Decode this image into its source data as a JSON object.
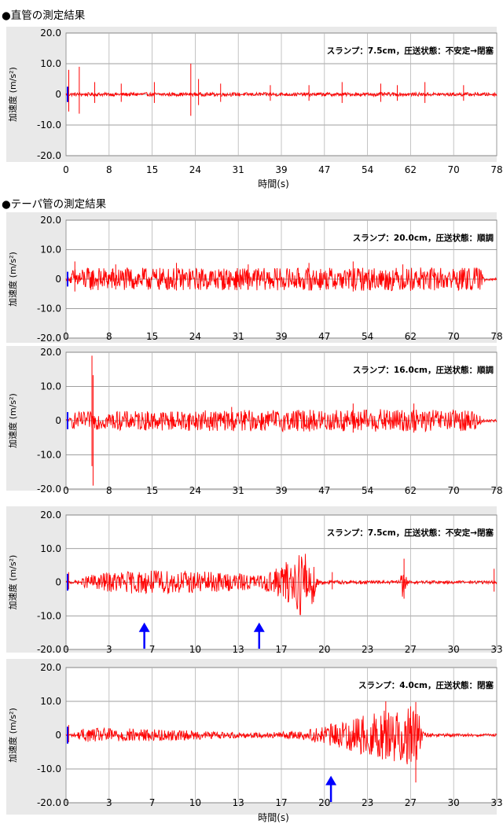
{
  "figure": {
    "straight_title": "●直管の測定結果",
    "taper_title": "●テーパ管の測定結果",
    "ylabel": "加速度 (m/s²)",
    "xlabel": "時間(s)",
    "colors": {
      "signal": "#ff0000",
      "arrow": "#0000ff",
      "panel_bg": "#e9e9e9",
      "plot_bg": "#ffffff",
      "grid": "#7f7f7f"
    }
  },
  "chart_data": [
    {
      "type": "line",
      "group": "直管",
      "annotation": "スランプ：7.5cm，圧送状態：不安定→閉塞",
      "ylabel": "加速度 (m/s²)",
      "xlabel": "時間(s)",
      "yticks": [
        "20.0",
        "10.0",
        "0",
        "-10.0",
        "-20.0"
      ],
      "ylim": [
        -20,
        20
      ],
      "xticks": [
        "0",
        "8",
        "15",
        "24",
        "31",
        "39",
        "47",
        "54",
        "62",
        "70",
        "78"
      ],
      "xlim": [
        0,
        78
      ],
      "grid": true,
      "series": [
        {
          "color": "#ff0000",
          "baseline": 0,
          "amplitude": 0.6,
          "spikes": [
            [
              0.5,
              8
            ],
            [
              2.4,
              9
            ],
            [
              5.2,
              4
            ],
            [
              10,
              3.5
            ],
            [
              16,
              4
            ],
            [
              22.6,
              10
            ],
            [
              24,
              5
            ],
            [
              28,
              3.5
            ],
            [
              37,
              3
            ],
            [
              44,
              3
            ],
            [
              50,
              4
            ],
            [
              57,
              3.5
            ],
            [
              60,
              3
            ],
            [
              65,
              4
            ],
            [
              72,
              3
            ]
          ]
        }
      ],
      "arrows": []
    },
    {
      "type": "line",
      "group": "テーパ管",
      "annotation": "スランプ：20.0cm，圧送状態：順調",
      "ylabel": "加速度 (m/s²)",
      "yticks": [
        "20.0",
        "10.0",
        "0",
        "-10.0",
        "-20.0"
      ],
      "ylim": [
        -20,
        20
      ],
      "xticks": [
        "0",
        "8",
        "15",
        "24",
        "31",
        "39",
        "47",
        "54",
        "62",
        "70",
        "78"
      ],
      "xlim": [
        0,
        78
      ],
      "grid": true,
      "series": [
        {
          "color": "#ff0000",
          "baseline": 0,
          "envelope": [
            [
              0,
              0.5
            ],
            [
              0.6,
              0.6
            ],
            [
              1.2,
              3.5
            ],
            [
              3,
              4
            ],
            [
              20,
              3.8
            ],
            [
              40,
              3.8
            ],
            [
              60,
              4
            ],
            [
              75,
              4
            ],
            [
              76,
              0.4
            ],
            [
              78,
              0.4
            ]
          ],
          "spikes": [
            [
              1.6,
              6
            ],
            [
              9,
              5
            ],
            [
              20,
              5.5
            ],
            [
              33,
              5
            ],
            [
              44,
              5.5
            ],
            [
              52,
              6
            ],
            [
              61,
              5
            ]
          ]
        }
      ],
      "arrows": []
    },
    {
      "type": "line",
      "group": "テーパ管",
      "annotation": "スランプ：16.0cm，圧送状態：順調",
      "ylabel": "加速度 (m/s²)",
      "yticks": [
        "20.0",
        "10.0",
        "0",
        "-10.0",
        "-20.0"
      ],
      "ylim": [
        -20,
        20
      ],
      "xticks": [
        "0",
        "8",
        "15",
        "24",
        "31",
        "39",
        "47",
        "54",
        "62",
        "70",
        "78"
      ],
      "xlim": [
        0,
        78
      ],
      "grid": true,
      "series": [
        {
          "color": "#ff0000",
          "baseline": 0,
          "envelope": [
            [
              0,
              0.5
            ],
            [
              0.6,
              0.5
            ],
            [
              1.2,
              2.5
            ],
            [
              10,
              2.8
            ],
            [
              40,
              3.2
            ],
            [
              60,
              3.4
            ],
            [
              74,
              3
            ],
            [
              76,
              0.4
            ],
            [
              78,
              0.4
            ]
          ],
          "spikes": [
            [
              4.7,
              19
            ],
            [
              4.9,
              -19
            ],
            [
              30,
              4
            ],
            [
              52,
              5
            ],
            [
              63,
              5
            ]
          ]
        }
      ],
      "arrows": []
    },
    {
      "type": "line",
      "group": "テーパ管",
      "annotation": "スランプ：7.5cm，圧送状態：不安定→閉塞",
      "ylabel": "加速度 (m/s²)",
      "yticks": [
        "20.0",
        "10.0",
        "0",
        "-10.0",
        "-20.0"
      ],
      "ylim": [
        -20,
        20
      ],
      "xticks": [
        "0",
        "3",
        "7",
        "10",
        "13",
        "17",
        "20",
        "23",
        "27",
        "30",
        "33"
      ],
      "xlim": [
        0,
        33
      ],
      "grid": true,
      "series": [
        {
          "color": "#ff0000",
          "baseline": 0,
          "envelope": [
            [
              0,
              0.4
            ],
            [
              1,
              0.6
            ],
            [
              1.7,
              2.2
            ],
            [
              4,
              3.2
            ],
            [
              7,
              3.6
            ],
            [
              10,
              3.3
            ],
            [
              13,
              2.6
            ],
            [
              15,
              2.2
            ],
            [
              16.5,
              5
            ],
            [
              17.5,
              8
            ],
            [
              18,
              10
            ],
            [
              18.8,
              9
            ],
            [
              19.3,
              1.2
            ],
            [
              20,
              0.6
            ],
            [
              24,
              0.5
            ],
            [
              25.6,
              0.5
            ],
            [
              25.8,
              6
            ],
            [
              26.2,
              0.5
            ],
            [
              32.5,
              0.5
            ],
            [
              33,
              0.4
            ]
          ],
          "spikes": [
            [
              0.2,
              3
            ],
            [
              20.4,
              3
            ],
            [
              25.9,
              7
            ],
            [
              32.8,
              4
            ]
          ]
        }
      ],
      "arrows": [
        6,
        14.8
      ]
    },
    {
      "type": "line",
      "group": "テーパ管",
      "annotation": "スランプ：4.0cm，圧送状態：閉塞",
      "ylabel": "加速度 (m/s²)",
      "xlabel": "時間(s)",
      "yticks": [
        "20.0",
        "10.0",
        "0",
        "-10.0",
        "-20.0"
      ],
      "ylim": [
        -20,
        20
      ],
      "xticks": [
        "0",
        "3",
        "7",
        "10",
        "13",
        "17",
        "20",
        "23",
        "27",
        "30",
        "33"
      ],
      "xlim": [
        0,
        33
      ],
      "grid": true,
      "series": [
        {
          "color": "#ff0000",
          "baseline": 0,
          "envelope": [
            [
              0,
              0.4
            ],
            [
              0.7,
              0.6
            ],
            [
              1.3,
              2
            ],
            [
              4,
              2.2
            ],
            [
              8,
              1.6
            ],
            [
              12,
              1
            ],
            [
              15,
              0.8
            ],
            [
              18,
              1.2
            ],
            [
              20,
              3
            ],
            [
              22,
              5
            ],
            [
              24,
              7
            ],
            [
              25.5,
              8.5
            ],
            [
              26.5,
              10
            ],
            [
              27.1,
              6
            ],
            [
              27.4,
              0.8
            ],
            [
              28,
              0.5
            ],
            [
              33,
              0.4
            ]
          ],
          "spikes": [
            [
              0.2,
              3
            ],
            [
              24.5,
              10
            ],
            [
              26.8,
              -14
            ]
          ]
        }
      ],
      "arrows": [
        20.3
      ]
    }
  ]
}
